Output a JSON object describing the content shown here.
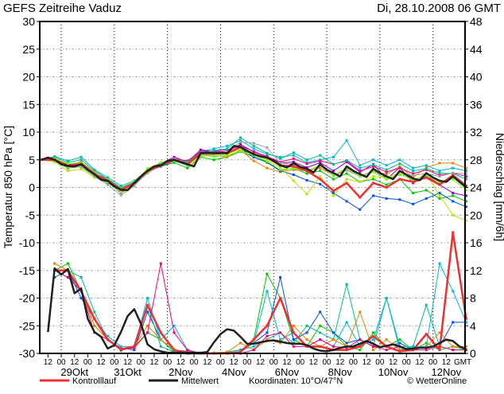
{
  "header": {
    "title": "GEFS  Zeitreihe Vaduz",
    "run": "Di, 28.10.2008  06 GMT"
  },
  "legend": {
    "control": "Kontrolllauf",
    "mean": "Mittelwert",
    "coords": "Koordinaten:  10°O/47°N",
    "credit": "© WetterOnline"
  },
  "colors": {
    "control": "#f03030",
    "mean": "#202020",
    "members": [
      "#00b8e0",
      "#00c800",
      "#9000d0",
      "#f08000",
      "#0050f0",
      "#c0e000",
      "#f00080",
      "#00c090",
      "#a0a0a0",
      "#70ff00"
    ]
  },
  "chart_data": {
    "type": "line",
    "time_start": "28.10.2008 06 GMT",
    "time_step_hours_mean": 6,
    "time_step_hours_members": 12,
    "x_tick_labels": [
      "12",
      "00",
      "12",
      "00",
      "12",
      "00",
      "12",
      "00",
      "12",
      "00",
      "12",
      "00",
      "12",
      "00",
      "12",
      "00",
      "12",
      "00",
      "12",
      "00",
      "12",
      "00",
      "12",
      "00",
      "12",
      "00",
      "12",
      "00",
      "12",
      "00",
      "12"
    ],
    "x_unit_label": "GMT",
    "day_labels": [
      "29Okt",
      "31Okt",
      "2Nov",
      "4Nov",
      "6Nov",
      "8Nov",
      "10Nov",
      "12Nov"
    ],
    "left_axis": {
      "label": "Temperatur 850 hPa [°C]",
      "range": [
        -30,
        30
      ],
      "ticks": [
        "30",
        "25",
        "20",
        "15",
        "10",
        "5",
        "0",
        "-5",
        "-10",
        "-15",
        "-20",
        "-25",
        "-30"
      ]
    },
    "right_axis": {
      "label": "Niederschlag [mm/6h]",
      "range": [
        0,
        48
      ],
      "ticks": [
        "48",
        "44",
        "40",
        "36",
        "32",
        "28",
        "24",
        "20",
        "16",
        "12",
        "8",
        "4",
        "0"
      ]
    },
    "grid": true,
    "temperature": {
      "mean": [
        5.0,
        5.4,
        5.0,
        4.2,
        3.9,
        3.8,
        4.2,
        3.2,
        2.4,
        1.4,
        1.2,
        0.2,
        -0.4,
        -0.5,
        0.8,
        2.0,
        3.0,
        3.8,
        4.0,
        4.8,
        5.0,
        4.6,
        4.2,
        3.8,
        6.2,
        6.3,
        6.2,
        6.2,
        6.2,
        7.5,
        7.3,
        6.6,
        6.0,
        5.6,
        5.4,
        4.8,
        4.0,
        3.6,
        4.4,
        3.7,
        3.4,
        2.7,
        4.2,
        3.2,
        2.6,
        2.0,
        3.8,
        3.0,
        2.4,
        1.9,
        3.4,
        2.6,
        2.0,
        1.5,
        3.0,
        2.3,
        1.6,
        1.3,
        2.6,
        1.8,
        1.2,
        1.0,
        2.0,
        1.0,
        0.0
      ],
      "control": [
        5,
        5,
        3.9,
        4.2,
        2.4,
        1.2,
        -0.4,
        0.8,
        3,
        4,
        5,
        4.2,
        6.2,
        6.2,
        6.2,
        7.3,
        6,
        5.4,
        4,
        3.8,
        3,
        1.5,
        -0.6,
        0.8,
        -1.8,
        0.8,
        0,
        1.5,
        1,
        1.8,
        0.5,
        2.2,
        0.3
      ],
      "members": [
        [
          5,
          5.5,
          4.5,
          5,
          3,
          1.5,
          0,
          1,
          3,
          4.5,
          5,
          4.5,
          6.5,
          7,
          7.5,
          8.5,
          7,
          6,
          5.5,
          5.8,
          4.5,
          5,
          5.5,
          8.5,
          4,
          5,
          4,
          5,
          3.5,
          4,
          3,
          3.5,
          3
        ],
        [
          5,
          4.8,
          3.5,
          3.8,
          2,
          0.8,
          -0.8,
          0.5,
          2.8,
          3.8,
          4.5,
          3.5,
          5.5,
          5,
          5.5,
          6.5,
          5.5,
          4.5,
          3,
          3.5,
          2.5,
          3,
          1.5,
          2.5,
          1,
          1.5,
          0.5,
          1.5,
          -1,
          -0.5,
          -2,
          -1.5,
          -2.5
        ],
        [
          5,
          5.2,
          4,
          4.5,
          2.6,
          1.5,
          -0.2,
          1,
          3.2,
          4.3,
          5.5,
          4.6,
          6.8,
          6.5,
          6.5,
          7.8,
          6.4,
          5.6,
          4.4,
          4.6,
          3.6,
          4.5,
          3,
          4.6,
          2.8,
          4.2,
          1.5,
          3.6,
          0.8,
          2.2,
          0.5,
          -1,
          -1.5
        ],
        [
          5,
          5.3,
          4.2,
          4.6,
          2.8,
          1,
          -0.6,
          0.6,
          2.6,
          4,
          5.2,
          4.5,
          6,
          5.8,
          5.5,
          6.8,
          4.8,
          3.5,
          2.8,
          3.2,
          3,
          3.5,
          2.2,
          3.2,
          2,
          3,
          2.4,
          3.8,
          1.8,
          3.6,
          4.4,
          4.4,
          3.5
        ],
        [
          5,
          5,
          4,
          4.2,
          2.2,
          1,
          -1,
          0.5,
          3,
          3.8,
          4.8,
          4,
          6,
          6,
          6.2,
          7,
          5.5,
          4.6,
          3,
          2.3,
          1.3,
          0.6,
          -1,
          -2.5,
          -4,
          -1.5,
          -2,
          -2.2,
          -3,
          -2,
          -1,
          -2.5,
          -3.5
        ],
        [
          5,
          4.6,
          3,
          3.3,
          1.8,
          1,
          -0.9,
          0.7,
          3,
          4.2,
          5.1,
          4,
          5.6,
          5.8,
          6,
          7,
          6,
          5,
          3.6,
          1.2,
          -1.2,
          2,
          -1.5,
          1.5,
          1,
          2,
          1.8,
          2.6,
          1.2,
          2.5,
          -1.5,
          -5,
          -6
        ],
        [
          5,
          5.1,
          4.1,
          4.4,
          2.5,
          1.3,
          -0.3,
          0.9,
          3.3,
          4.3,
          5.2,
          4.8,
          6.5,
          6.6,
          6.8,
          7.5,
          6.5,
          5.6,
          4.6,
          5.2,
          4.3,
          4.8,
          4.2,
          4.8,
          3,
          3.8,
          2.8,
          3.5,
          2.5,
          3.2,
          2.2,
          2.6,
          2.0
        ],
        [
          5,
          5.6,
          4.8,
          5.5,
          3.2,
          1.8,
          0.3,
          1.2,
          3.1,
          4.1,
          5,
          4.6,
          6.3,
          6.7,
          7,
          9,
          7.5,
          6.2,
          5.2,
          6.3,
          5,
          5.8,
          4.2,
          4.9,
          3.5,
          4.1,
          3.2,
          4.3,
          3,
          3.4,
          2.6,
          2.5,
          1.5
        ],
        [
          5,
          4.9,
          3.6,
          3.7,
          2,
          0.5,
          -1.4,
          0.3,
          2.7,
          3.9,
          5.2,
          4.4,
          6.1,
          6,
          6.5,
          8.2,
          8,
          7.2,
          4.4,
          4.2,
          3,
          3.9,
          2.1,
          3.1,
          2,
          3,
          1.5,
          2.3,
          2.2,
          2.5,
          2,
          2.6,
          2.5
        ],
        [
          5,
          5.2,
          4.3,
          4.4,
          2.6,
          1.4,
          -0.2,
          1,
          3.4,
          4.5,
          4.8,
          4.1,
          5.8,
          5.6,
          5.8,
          6.6,
          5.8,
          4.7,
          3.2,
          3.4,
          3,
          4,
          2.2,
          3.5,
          2,
          2.8,
          1.5,
          2.4,
          1.4,
          2.2,
          0.8,
          1.5,
          -0.5
        ]
      ]
    },
    "precipitation": {
      "mean": [
        null,
        3.1,
        12.3,
        11.4,
        12.2,
        8.7,
        9.4,
        5.0,
        3.1,
        2.4,
        0.7,
        1.2,
        3.1,
        5.4,
        6.4,
        4.3,
        1.3,
        0.6,
        0.3,
        0.1,
        0.1,
        0.1,
        0.1,
        0.1,
        0.1,
        0.2,
        1.6,
        2.8,
        3.5,
        3.3,
        2.4,
        1.4,
        1.4,
        1.6,
        1.8,
        1.9,
        1.7,
        1.5,
        1.4,
        1.4,
        1.2,
        0.7,
        0.4,
        0.3,
        0.5,
        0.8,
        1.0,
        1.0,
        1.4,
        1.8,
        1.4,
        0.9,
        1.1,
        1.3,
        1.0,
        0.6,
        0.7,
        0.8,
        0.8,
        1.0,
        1.5,
        2.0,
        1.8,
        1.0,
        0.6
      ],
      "control": [
        null,
        12,
        12,
        9,
        5,
        2,
        0.6,
        1,
        7,
        3,
        0.5,
        0,
        0,
        0,
        0,
        0.2,
        2,
        4,
        8,
        3,
        1,
        1,
        0.5,
        0.5,
        1,
        2.5,
        1,
        0.3,
        0.5,
        2.8,
        0.5,
        17.5,
        5
      ],
      "members": [
        [
          null,
          12,
          13,
          9,
          4,
          2,
          0.5,
          1,
          3,
          2,
          0.2,
          0,
          0,
          0,
          0,
          0.1,
          2,
          11.5,
          8,
          2,
          1,
          4,
          3,
          1,
          0.5,
          3,
          1,
          2,
          0.5,
          1.5,
          0.5,
          1,
          0.5
        ],
        [
          null,
          11,
          12,
          8,
          5,
          2,
          0.8,
          0.5,
          6,
          2,
          0.5,
          0.3,
          0,
          0,
          0.2,
          0.5,
          1.5,
          3,
          11,
          2,
          3,
          6,
          3,
          1.5,
          2,
          1,
          1,
          1.5,
          0.5,
          1,
          1,
          4.5,
          4.5
        ],
        [
          null,
          13,
          12,
          11,
          6,
          2,
          0.4,
          1,
          7,
          1,
          0.2,
          0,
          0,
          0,
          0.2,
          0.5,
          1,
          2,
          3,
          1.5,
          4,
          3,
          2,
          10,
          2,
          1,
          8,
          1,
          1,
          7,
          1,
          0.5,
          0.5
        ],
        [
          null,
          12,
          11,
          9,
          5,
          2.5,
          1,
          1,
          8,
          2,
          4,
          0.5,
          0,
          0,
          0,
          0.2,
          1.5,
          9,
          2,
          3,
          1,
          2,
          1,
          4.5,
          1,
          2,
          8,
          0.5,
          1,
          1,
          13,
          9,
          4.5
        ],
        [
          null,
          13,
          12,
          9,
          4,
          2,
          0.6,
          1,
          4,
          2,
          0.5,
          0.2,
          0,
          0.1,
          0.2,
          1.5,
          0.5,
          2,
          1.5,
          4,
          2,
          1,
          2,
          1,
          6,
          0.5,
          2,
          0.5,
          0.5,
          1,
          3,
          1,
          1
        ],
        [
          null,
          12,
          11,
          9,
          3,
          2,
          0.5,
          0.8,
          3,
          13,
          3,
          0.5,
          0,
          0,
          0,
          0,
          0.5,
          2.5,
          3,
          1,
          1,
          2,
          1,
          0.8,
          2,
          1,
          0.5,
          1,
          0.5,
          0.5,
          1,
          0.5,
          0.5
        ]
      ]
    }
  }
}
